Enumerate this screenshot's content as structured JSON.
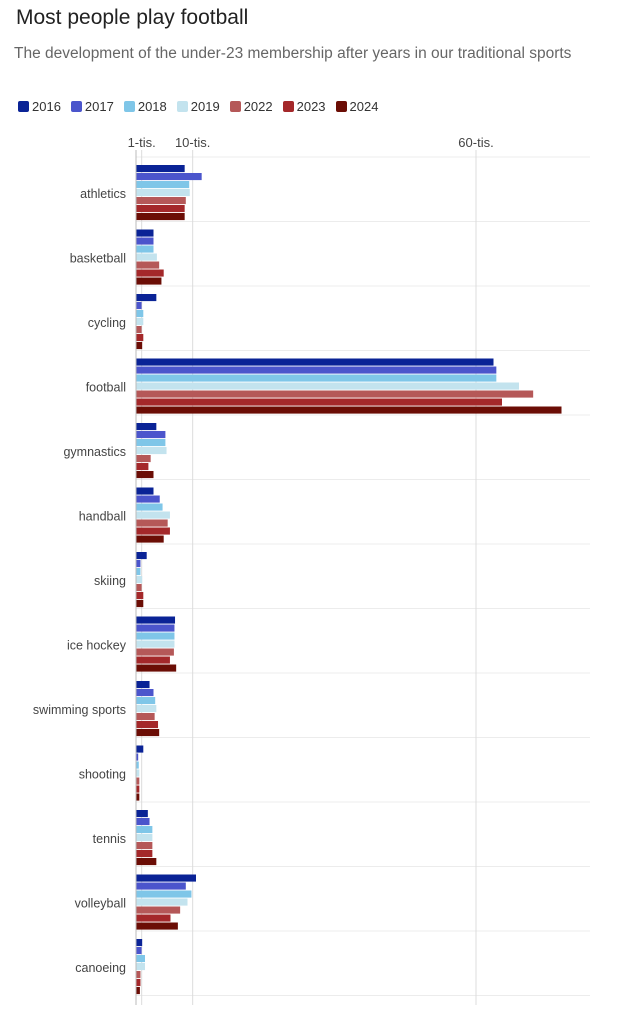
{
  "chart_data": {
    "type": "bar",
    "orientation": "horizontal",
    "title": "Most people play football",
    "subtitle": "The development of the under-23 membership after years in our traditional sports",
    "xlabel": "",
    "ylabel": "",
    "ticks": [
      {
        "value": 1000,
        "label": "1-tis."
      },
      {
        "value": 10000,
        "label": "10-tis."
      },
      {
        "value": 60000,
        "label": "60-tis."
      }
    ],
    "xlim": [
      0,
      80000
    ],
    "grid": true,
    "legend_position": "top-left",
    "categories": [
      "athletics",
      "basketball",
      "cycling",
      "football",
      "gymnastics",
      "handball",
      "skiing",
      "ice hockey",
      "swimming sports",
      "shooting",
      "tennis",
      "volleyball",
      "canoeing"
    ],
    "series": [
      {
        "name": "2016",
        "color": "#0a2396",
        "values": [
          8500,
          3000,
          3500,
          63000,
          3500,
          3000,
          1800,
          6800,
          2300,
          1200,
          2000,
          10500,
          1000
        ]
      },
      {
        "name": "2017",
        "color": "#4b55cc",
        "values": [
          11500,
          3000,
          900,
          63500,
          5100,
          4100,
          700,
          6700,
          3000,
          300,
          2300,
          8700,
          900
        ]
      },
      {
        "name": "2018",
        "color": "#7fc6e8",
        "values": [
          9300,
          3000,
          1200,
          63500,
          5100,
          4600,
          700,
          6700,
          3300,
          400,
          2800,
          9700,
          1500
        ]
      },
      {
        "name": "2019",
        "color": "#c3e3ee",
        "values": [
          9400,
          3600,
          1200,
          67500,
          5300,
          5900,
          1000,
          6700,
          3500,
          500,
          2800,
          9000,
          1500
        ]
      },
      {
        "name": "2022",
        "color": "#b55858",
        "values": [
          8700,
          4000,
          900,
          70000,
          2500,
          5500,
          900,
          6600,
          3200,
          500,
          2800,
          7700,
          700
        ]
      },
      {
        "name": "2023",
        "color": "#a4282a",
        "values": [
          8500,
          4800,
          1200,
          64500,
          2100,
          5900,
          1200,
          5900,
          3800,
          500,
          2800,
          6000,
          700
        ]
      },
      {
        "name": "2024",
        "color": "#6b0d05",
        "values": [
          8500,
          4400,
          1000,
          75000,
          3000,
          4800,
          1200,
          7000,
          4000,
          500,
          3500,
          7300,
          600
        ]
      }
    ]
  }
}
